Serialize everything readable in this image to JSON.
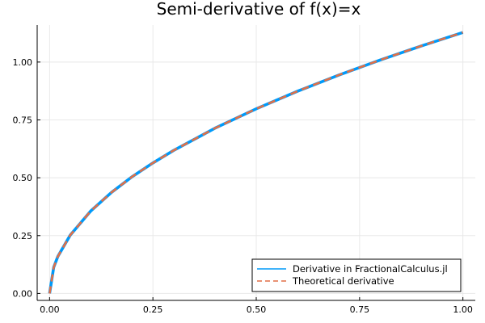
{
  "chart_data": {
    "type": "line",
    "title": "Semi-derivative of f(x)=x",
    "xlabel": "",
    "ylabel": "",
    "xlim": [
      -0.03,
      1.03
    ],
    "ylim": [
      -0.03,
      1.16
    ],
    "x_ticks": [
      0.0,
      0.25,
      0.5,
      0.75,
      1.0
    ],
    "x_tick_labels": [
      "0.00",
      "0.25",
      "0.50",
      "0.75",
      "1.00"
    ],
    "y_ticks": [
      0.0,
      0.25,
      0.5,
      0.75,
      1.0
    ],
    "y_tick_labels": [
      "0.00",
      "0.25",
      "0.50",
      "0.75",
      "1.00"
    ],
    "grid": true,
    "legend_position": "bottom-right",
    "series": [
      {
        "name": "Derivative in FractionalCalculus.jl",
        "color": "#009af9",
        "style": "solid",
        "x": [
          0.0,
          0.01,
          0.02,
          0.05,
          0.1,
          0.15,
          0.2,
          0.25,
          0.3,
          0.4,
          0.5,
          0.6,
          0.7,
          0.8,
          0.9,
          1.0
        ],
        "y": [
          0.0,
          0.113,
          0.16,
          0.252,
          0.357,
          0.437,
          0.505,
          0.564,
          0.618,
          0.714,
          0.798,
          0.874,
          0.944,
          1.009,
          1.07,
          1.128
        ]
      },
      {
        "name": "Theoretical derivative",
        "color": "#e26f46",
        "style": "dashed",
        "x": [
          0.0,
          0.01,
          0.02,
          0.05,
          0.1,
          0.15,
          0.2,
          0.25,
          0.3,
          0.4,
          0.5,
          0.6,
          0.7,
          0.8,
          0.9,
          1.0
        ],
        "y": [
          0.0,
          0.113,
          0.16,
          0.252,
          0.357,
          0.437,
          0.505,
          0.564,
          0.618,
          0.714,
          0.798,
          0.874,
          0.944,
          1.009,
          1.07,
          1.128
        ]
      }
    ]
  }
}
